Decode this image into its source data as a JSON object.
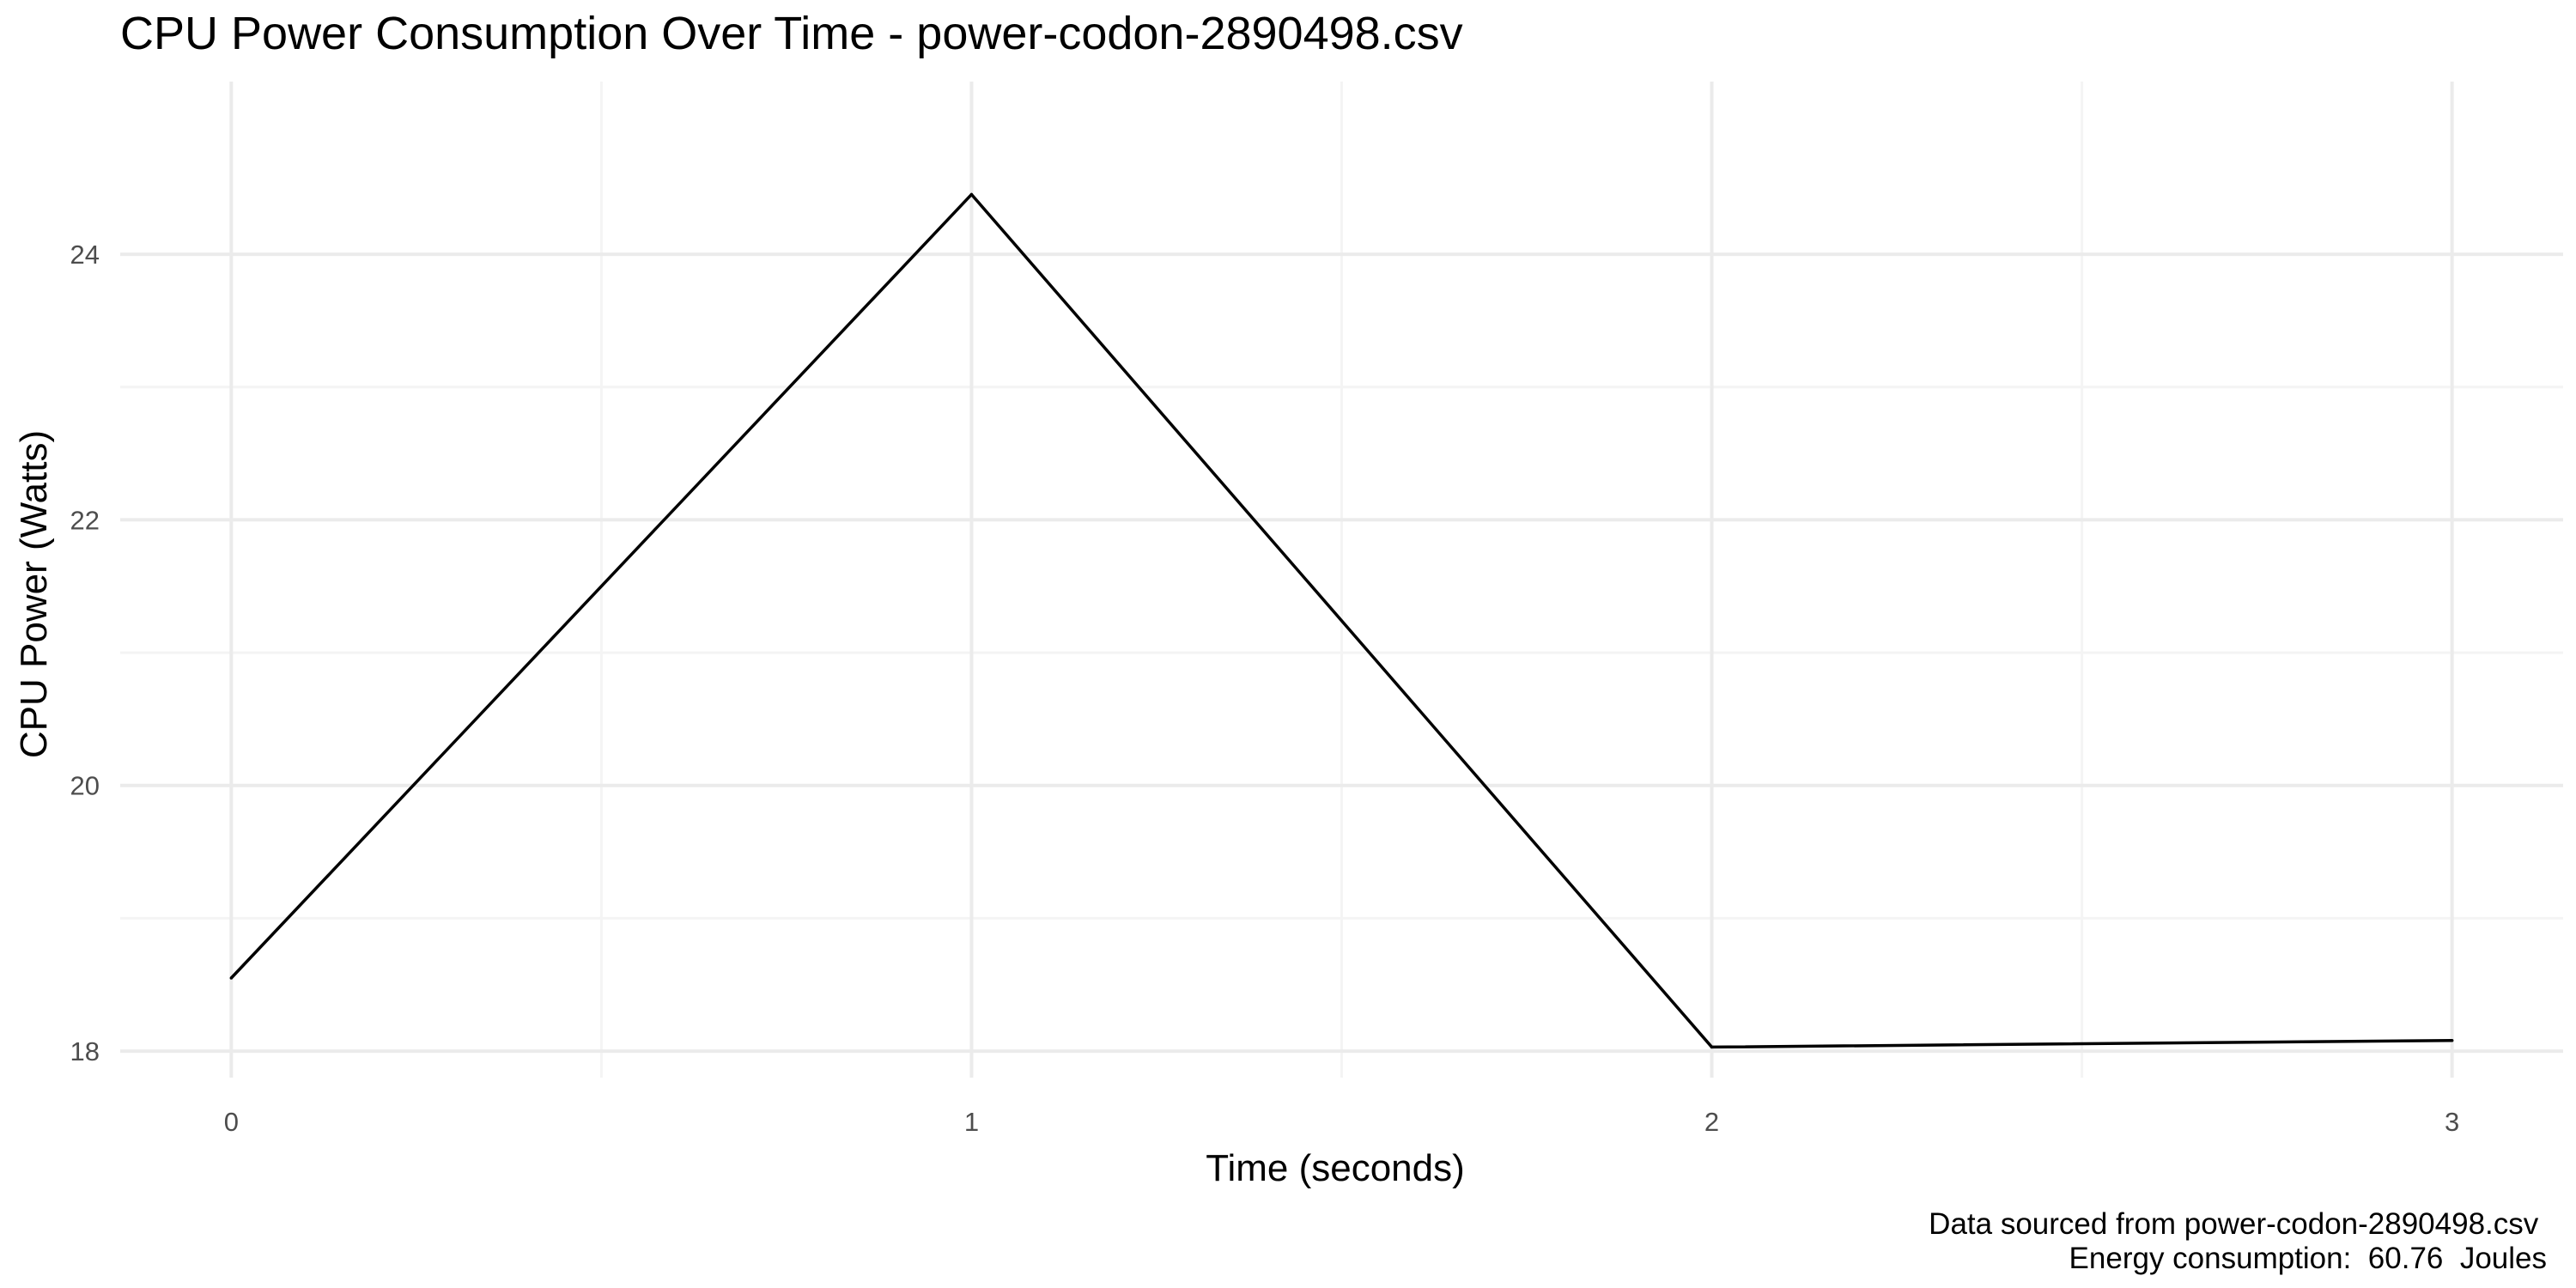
{
  "chart_data": {
    "type": "line",
    "title": "CPU Power Consumption Over Time - power-codon-2890498.csv",
    "xlabel": "Time (seconds)",
    "ylabel": "CPU Power (Watts)",
    "x": [
      0,
      1,
      2,
      3
    ],
    "series": [
      {
        "values": [
          18.55,
          24.45,
          18.03,
          18.08
        ],
        "color": "#000000"
      }
    ],
    "xlim": [
      -0.15,
      3.15
    ],
    "ylim": [
      17.8,
      25.3
    ],
    "x_ticks": [
      0,
      1,
      2,
      3
    ],
    "x_tick_labels": [
      "0",
      "1",
      "2",
      "3"
    ],
    "y_ticks": [
      18,
      20,
      22,
      24
    ],
    "y_tick_labels": [
      "18",
      "20",
      "22",
      "24"
    ],
    "x_minor_ticks": [
      0.5,
      1.5,
      2.5
    ],
    "y_minor_ticks": [
      19,
      21,
      23
    ],
    "grid": true,
    "legend": "none",
    "caption_lines": [
      "Data sourced from power-codon-2890498.csv ",
      "Energy consumption:  60.76  Joules"
    ]
  },
  "colors": {
    "background": "#ffffff",
    "grid_major": "#ebebeb",
    "grid_minor": "#f4f4f4",
    "line": "#000000",
    "axis_text": "#4d4d4d",
    "label_text": "#000000"
  }
}
